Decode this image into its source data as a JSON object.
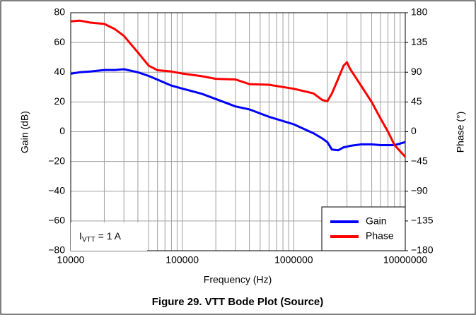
{
  "chart_data": {
    "type": "line",
    "title": "Figure 29. VTT Bode Plot (Source)",
    "xlabel": "Frequency (Hz)",
    "ylabel": "Gain (dB)",
    "y2label": "Phase (°)",
    "annotation": [
      "I",
      "VTT",
      " = 1 A"
    ],
    "xscale": "log",
    "grid": true,
    "legend": "lower right",
    "x": [
      10000,
      12000,
      15000,
      20000,
      25000,
      30000,
      40000,
      50000,
      60000,
      80000,
      100000,
      150000,
      200000,
      300000,
      400000,
      600000,
      1000000,
      1500000,
      1800000,
      2000000,
      2200000,
      2500000,
      2800000,
      3000000,
      3200000,
      4000000,
      5000000,
      6000000,
      7000000,
      8000000,
      10000000
    ],
    "series": [
      {
        "name": "Gain",
        "color": "#0000ff",
        "values": [
          39,
          40,
          40.5,
          41.5,
          41.5,
          42,
          40,
          37.5,
          35,
          31,
          29,
          25.5,
          22,
          17,
          15,
          10,
          5,
          -1,
          -4.5,
          -7,
          -12,
          -12.5,
          -10.5,
          -10,
          -9.5,
          -8.5,
          -8.5,
          -9,
          -9,
          -9,
          -7
        ]
      },
      {
        "name": "Phase",
        "color": "#ff0000",
        "axis": "y2",
        "values": [
          167,
          168,
          165,
          163,
          155,
          145,
          120,
          100,
          93,
          91,
          88,
          84,
          80,
          79,
          72,
          71,
          65,
          58,
          48,
          46,
          58,
          80,
          100,
          105,
          95,
          70,
          45,
          20,
          0,
          -20,
          -38
        ]
      }
    ],
    "xlim": [
      10000,
      10000000
    ],
    "xticks": [
      10000,
      100000,
      1000000,
      10000000
    ],
    "ylim": [
      -80,
      80
    ],
    "yticks": [
      {
        "value": -80,
        "label": "−80"
      },
      {
        "value": -60,
        "label": "−60"
      },
      {
        "value": -40,
        "label": "−40"
      },
      {
        "value": -20,
        "label": "−20"
      },
      0,
      20,
      40,
      60,
      80
    ],
    "y2lim": [
      -180,
      180
    ],
    "y2ticks": [
      {
        "value": -180,
        "label": "−180"
      },
      {
        "value": -135,
        "label": "−135"
      },
      {
        "value": -90,
        "label": "−90"
      },
      {
        "value": -45,
        "label": "−45"
      },
      0,
      45,
      90,
      135,
      180
    ]
  }
}
